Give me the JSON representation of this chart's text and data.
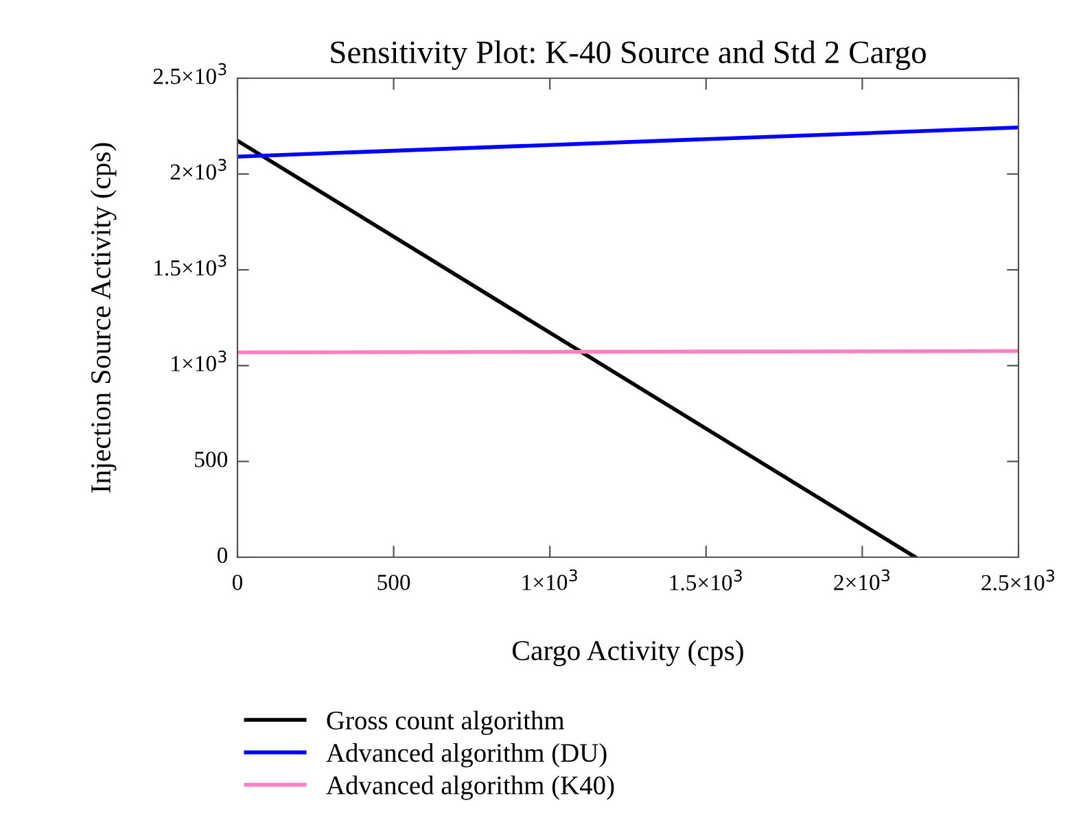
{
  "chart_data": {
    "type": "line",
    "title": "Sensitivity Plot: K-40 Source and Std 2 Cargo",
    "xlabel": "Cargo Activity (cps)",
    "ylabel": "Injection Source Activity (cps)",
    "xlim": [
      0,
      2500
    ],
    "ylim": [
      0,
      2500
    ],
    "xticks": [
      0,
      500,
      {
        "value": 1000,
        "label": "1×10$^{3}$"
      },
      {
        "value": 1500,
        "label": "1.5×10$^{3}$"
      },
      {
        "value": 2000,
        "label": "2×10$^{3}$"
      },
      {
        "value": 2500,
        "label": "2.5×10$^{3}$"
      }
    ],
    "yticks": [
      0,
      500,
      {
        "value": 1000,
        "label": "1×10$^{3}$"
      },
      {
        "value": 1500,
        "label": "1.5×10$^{3}$"
      },
      {
        "value": 2000,
        "label": "2×10$^{3}$"
      },
      {
        "value": 2500,
        "label": "2.5×10$^{3}$"
      }
    ],
    "grid": false,
    "legend": "bottom",
    "line_style": "solid",
    "series": [
      {
        "name": "Gross count algorithm",
        "color": "#000000",
        "x": [
          0,
          2170
        ],
        "values": [
          2174,
          0
        ]
      },
      {
        "name": "Advanced algorithm (DU)",
        "color": "#0000ff",
        "x": [
          0,
          2500
        ],
        "values": [
          2091,
          2243
        ]
      },
      {
        "name": "Advanced algorithm (K40)",
        "color": "#ff80c0",
        "x": [
          0,
          2500
        ],
        "values": [
          1069,
          1076
        ]
      }
    ]
  }
}
